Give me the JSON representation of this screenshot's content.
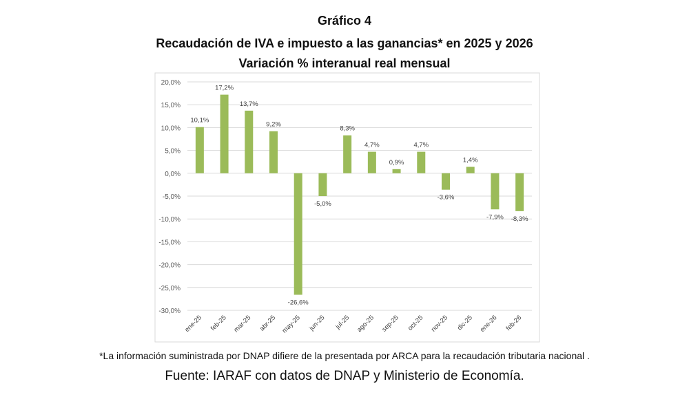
{
  "header": {
    "figure_label": "Gráfico 4",
    "title": "Recaudación  de IVA e impuesto  a las ganancias*  en 2025  y 2026",
    "subtitle": "Variación % interanual real mensual"
  },
  "chart_data": {
    "type": "bar",
    "title": "Recaudación de IVA e impuesto a las ganancias* en 2025 y 2026",
    "subtitle": "Variación % interanual real mensual",
    "xlabel": "",
    "ylabel": "",
    "ylim": [
      -30,
      20
    ],
    "yticks": [
      20,
      15,
      10,
      5,
      0,
      -5,
      -10,
      -15,
      -20,
      -25,
      -30
    ],
    "ytick_labels": [
      "20,0%",
      "15,0%",
      "10,0%",
      "5,0%",
      "0,0%",
      "-5,0%",
      "-10,0%",
      "-15,0%",
      "-20,0%",
      "-25,0%",
      "-30,0%"
    ],
    "grid": true,
    "legend": "none",
    "bar_color": "#9bbb59",
    "categories": [
      "ene-25",
      "feb-25",
      "mar-25",
      "abr-25",
      "may-25",
      "jun-25",
      "jul-25",
      "ago-25",
      "sep-25",
      "oct-25",
      "nov-25",
      "dic-25",
      "ene-26",
      "feb-26"
    ],
    "values": [
      10.1,
      17.2,
      13.7,
      9.2,
      -26.6,
      -5.0,
      8.3,
      4.7,
      0.9,
      4.7,
      -3.6,
      1.4,
      -7.9,
      -8.3
    ],
    "data_labels": [
      "10,1%",
      "17,2%",
      "13,7%",
      "9,2%",
      "-26,6%",
      "-5,0%",
      "8,3%",
      "4,7%",
      "0,9%",
      "4,7%",
      "-3,6%",
      "1,4%",
      "-7,9%",
      "-8,3%"
    ]
  },
  "footer": {
    "note": "*La información suministrada por DNAP difiere de la presentada por ARCA para la recaudación tributaria nacional .",
    "source": "Fuente: IARAF con datos de DNAP y Ministerio de Economía."
  }
}
